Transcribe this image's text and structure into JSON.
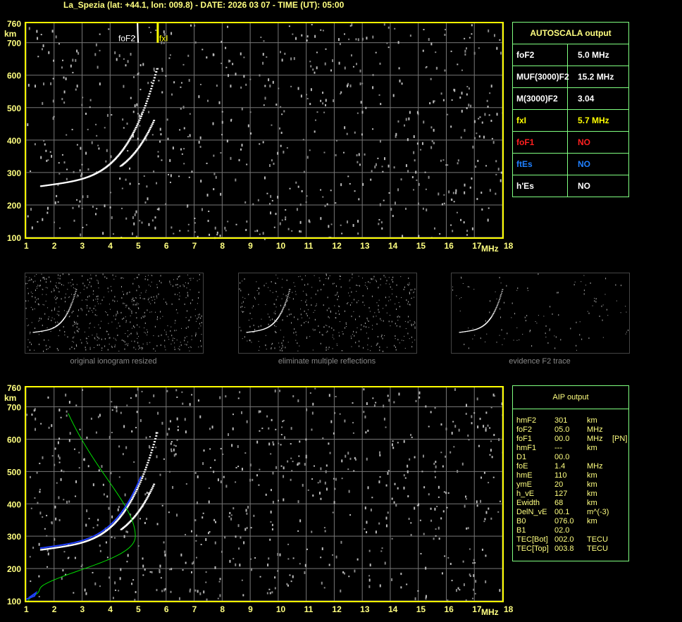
{
  "header": {
    "title": "La_Spezia (lat: +44.1, lon: 009.8) - DATE: 2026 03 07 - TIME (UT): 05:00"
  },
  "chart_data": [
    {
      "type": "scatter",
      "xlabel": "MHz",
      "ylabel": "km",
      "xlim": [
        1,
        18
      ],
      "ylim": [
        100,
        760
      ],
      "xticks": [
        "1",
        "2",
        "3",
        "4",
        "5",
        "6",
        "7",
        "8",
        "9",
        "10",
        "11",
        "12",
        "13",
        "14",
        "15",
        "16",
        "17",
        "18"
      ],
      "yticks": [
        "100",
        "200",
        "300",
        "400",
        "500",
        "600",
        "700",
        "760"
      ],
      "grid": true,
      "markers": [
        {
          "label": "foF2",
          "x": 5.0,
          "color": "#ffffff"
        },
        {
          "label": "fxI",
          "x": 5.7,
          "color": "#ffff00"
        }
      ]
    },
    {
      "type": "scatter",
      "xlabel": "MHz",
      "ylabel": "km",
      "xlim": [
        1,
        18
      ],
      "ylim": [
        100,
        760
      ],
      "xticks": [
        "1",
        "2",
        "3",
        "4",
        "5",
        "6",
        "7",
        "8",
        "9",
        "10",
        "11",
        "12",
        "13",
        "14",
        "15",
        "16",
        "17",
        "18"
      ],
      "yticks": [
        "100",
        "200",
        "300",
        "400",
        "500",
        "600",
        "700",
        "760"
      ],
      "grid": true
    }
  ],
  "thumbs": [
    "original ionogram resized",
    "eliminate multiple reflections",
    "evidence F2 trace"
  ],
  "autoscala": {
    "title": "AUTOSCALA output",
    "rows": [
      {
        "k": "foF2",
        "v": "5.0 MHz",
        "color": "#ffffff"
      },
      {
        "k": "MUF(3000)F2",
        "v": "15.2 MHz",
        "color": "#ffffff"
      },
      {
        "k": "M(3000)F2",
        "v": "3.04",
        "color": "#ffffff"
      },
      {
        "k": "fxI",
        "v": "5.7 MHz",
        "color": "#ffff00"
      },
      {
        "k": "foF1",
        "v": "NO",
        "color": "#ff2020"
      },
      {
        "k": "ftEs",
        "v": "NO",
        "color": "#2080ff"
      },
      {
        "k": "h'Es",
        "v": "NO",
        "color": "#ffffff"
      }
    ]
  },
  "aip": {
    "title": "AIP output",
    "rows": [
      [
        "hmF2",
        "301",
        "km",
        ""
      ],
      [
        "foF2",
        "05.0",
        "MHz",
        ""
      ],
      [
        "foF1",
        "00.0",
        "MHz",
        "[PN]"
      ],
      [
        "hmF1",
        "---",
        "km",
        ""
      ],
      [
        "D1",
        "00.0",
        "",
        ""
      ],
      [
        "foE",
        "1.4",
        "MHz",
        ""
      ],
      [
        "hmE",
        "110",
        "km",
        ""
      ],
      [
        "ymE",
        "20",
        "km",
        ""
      ],
      [
        "h_vE",
        "127",
        "km",
        ""
      ],
      [
        "Ewidth",
        "68",
        "km",
        ""
      ],
      [
        "DelN_vE",
        "00.1",
        "m^(-3)",
        ""
      ],
      [
        "B0",
        "076.0",
        "km",
        ""
      ],
      [
        "B1",
        "02.0",
        "",
        ""
      ],
      [
        "TEC[Bot]",
        "002.0",
        "TECU",
        ""
      ],
      [
        "TEC[Top]",
        "003.8",
        "TECU",
        ""
      ]
    ]
  }
}
